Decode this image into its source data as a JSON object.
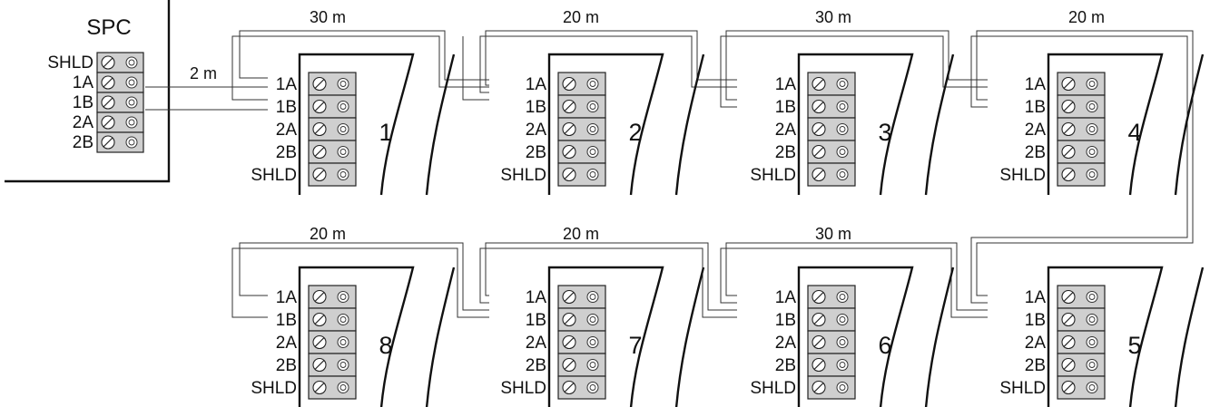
{
  "controller": {
    "title": "SPC",
    "terminals": [
      "SHLD",
      "1A",
      "1B",
      "2A",
      "2B"
    ]
  },
  "modules": [
    {
      "number": "1",
      "terminals": [
        "1A",
        "1B",
        "2A",
        "2B",
        "SHLD"
      ]
    },
    {
      "number": "2",
      "terminals": [
        "1A",
        "1B",
        "2A",
        "2B",
        "SHLD"
      ]
    },
    {
      "number": "3",
      "terminals": [
        "1A",
        "1B",
        "2A",
        "2B",
        "SHLD"
      ]
    },
    {
      "number": "4",
      "terminals": [
        "1A",
        "1B",
        "2A",
        "2B",
        "SHLD"
      ]
    },
    {
      "number": "5",
      "terminals": [
        "1A",
        "1B",
        "2A",
        "2B",
        "SHLD"
      ]
    },
    {
      "number": "6",
      "terminals": [
        "1A",
        "1B",
        "2A",
        "2B",
        "SHLD"
      ]
    },
    {
      "number": "7",
      "terminals": [
        "1A",
        "1B",
        "2A",
        "2B",
        "SHLD"
      ]
    },
    {
      "number": "8",
      "terminals": [
        "1A",
        "1B",
        "2A",
        "2B",
        "SHLD"
      ]
    }
  ],
  "cable_lengths": {
    "spc_to_1": "2 m",
    "into_1": "30 m",
    "into_2": "20 m",
    "into_3": "30 m",
    "into_4": "20 m",
    "into_6": "30 m",
    "into_7": "20 m",
    "into_8": "20 m"
  }
}
